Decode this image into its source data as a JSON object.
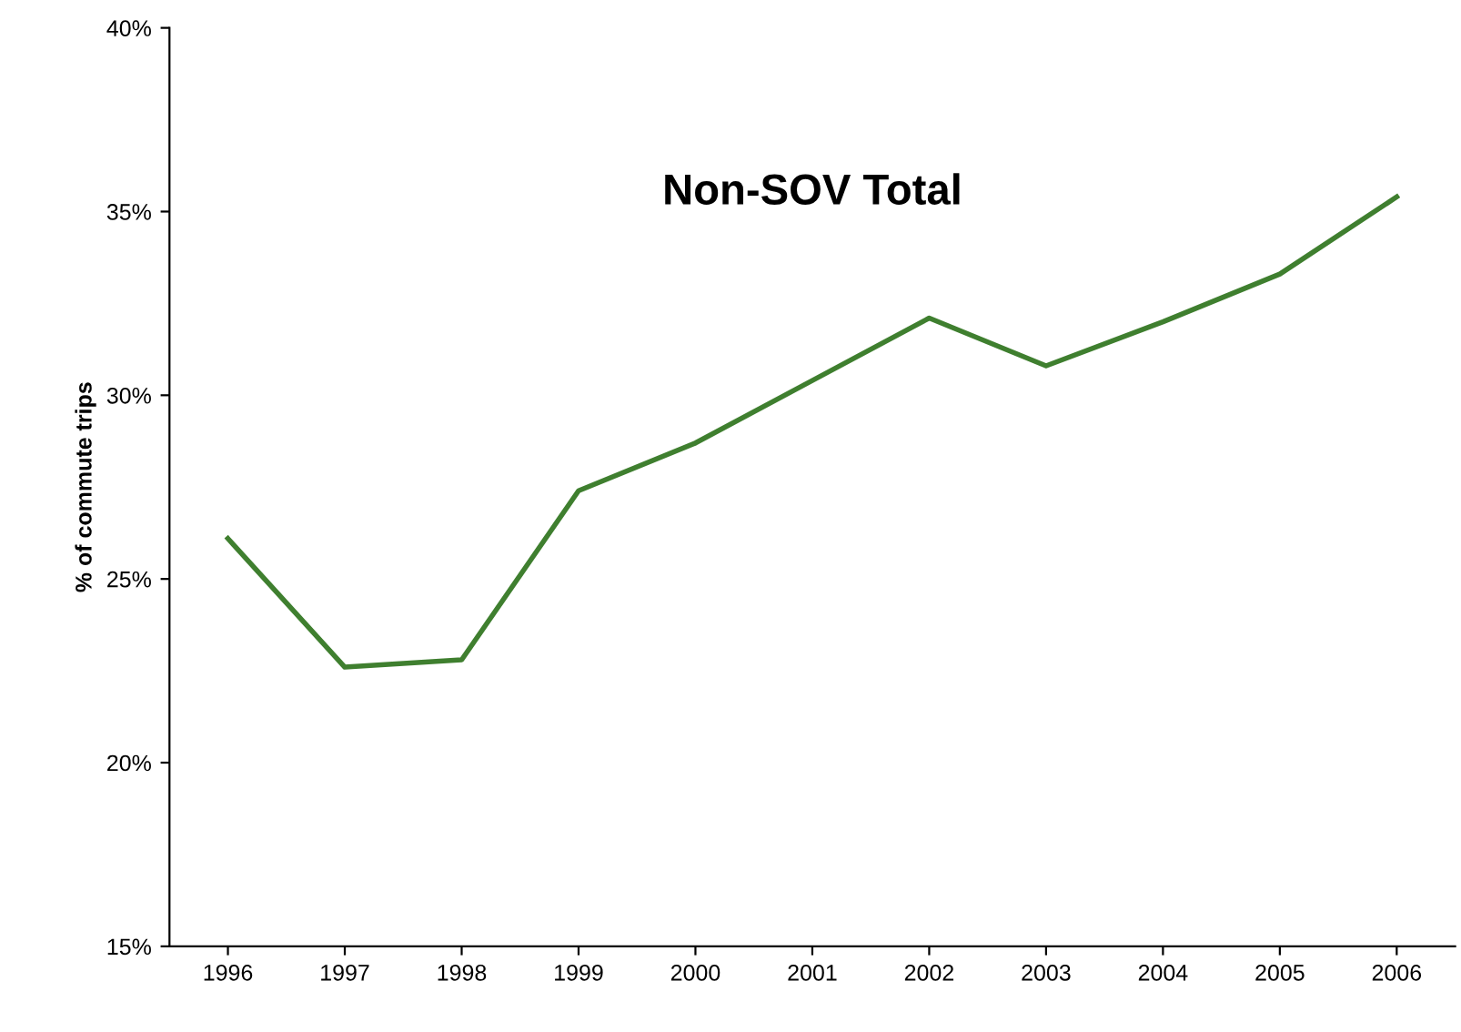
{
  "chart_data": {
    "type": "line",
    "ylabel": "% of commute trips",
    "categories": [
      "1996",
      "1997",
      "1998",
      "1999",
      "2000",
      "2001",
      "2002",
      "2003",
      "2004",
      "2005",
      "2006"
    ],
    "series": [
      {
        "name": "Non-SOV Total",
        "color": "#3f7f2f",
        "values": [
          26.1,
          22.6,
          22.8,
          27.4,
          28.7,
          30.4,
          32.1,
          30.8,
          32.0,
          33.3,
          35.4
        ]
      }
    ],
    "ylim": [
      15,
      40
    ],
    "yticks": [
      {
        "value": 15,
        "label": "15%"
      },
      {
        "value": 20,
        "label": "20%"
      },
      {
        "value": 25,
        "label": "25%"
      },
      {
        "value": 30,
        "label": "30%"
      },
      {
        "value": 35,
        "label": "35%"
      },
      {
        "value": 40,
        "label": "40%"
      }
    ],
    "grid": false,
    "legend": false,
    "marker": "none",
    "line_style": "solid"
  }
}
